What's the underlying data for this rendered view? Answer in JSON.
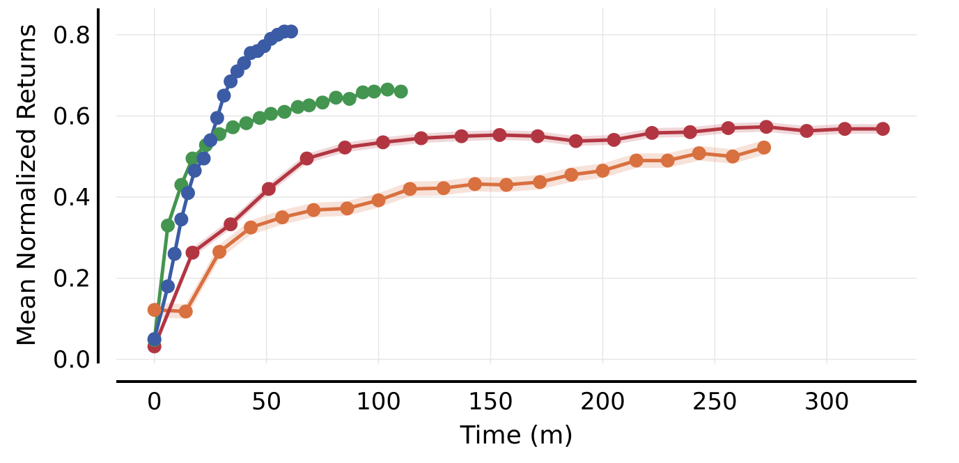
{
  "chart_data": {
    "type": "line",
    "title": "",
    "xlabel": "Time (m)",
    "ylabel": "Mean Normalized Returns",
    "xlim": [
      -17,
      340
    ],
    "ylim": [
      -0.01,
      0.865
    ],
    "x_ticks": [
      0,
      50,
      100,
      150,
      200,
      250,
      300
    ],
    "x_tick_labels": [
      "0",
      "50",
      "100",
      "150",
      "200",
      "250",
      "300"
    ],
    "y_ticks": [
      0.0,
      0.2,
      0.4,
      0.6,
      0.8
    ],
    "y_tick_labels": [
      "0.0",
      "0.2",
      "0.4",
      "0.6",
      "0.8"
    ],
    "grid": true,
    "legend": "none",
    "series": [
      {
        "name": "blue",
        "color": "#3b5ba5",
        "band_width": 0.005,
        "x": [
          0,
          6,
          9,
          12,
          15,
          18,
          22,
          25,
          28,
          31,
          34,
          37,
          40,
          43,
          46,
          49,
          52,
          55,
          58,
          61
        ],
        "y": [
          0.05,
          0.18,
          0.26,
          0.345,
          0.41,
          0.465,
          0.495,
          0.54,
          0.595,
          0.65,
          0.685,
          0.71,
          0.73,
          0.755,
          0.76,
          0.772,
          0.79,
          0.8,
          0.808,
          0.808
        ]
      },
      {
        "name": "green",
        "color": "#43954f",
        "band_width": 0.008,
        "x": [
          0,
          6,
          12,
          17,
          23,
          29,
          35,
          41,
          47,
          52,
          58,
          64,
          69,
          75,
          81,
          87,
          93,
          98,
          104,
          110
        ],
        "y": [
          0.048,
          0.33,
          0.43,
          0.495,
          0.528,
          0.555,
          0.572,
          0.582,
          0.595,
          0.605,
          0.61,
          0.622,
          0.626,
          0.633,
          0.645,
          0.642,
          0.658,
          0.66,
          0.665,
          0.66
        ]
      },
      {
        "name": "red",
        "color": "#b23642",
        "band_width": 0.012,
        "x": [
          0,
          17,
          34,
          51,
          68,
          85,
          102,
          119,
          137,
          154,
          171,
          188,
          205,
          222,
          239,
          256,
          273,
          291,
          308,
          325
        ],
        "y": [
          0.032,
          0.263,
          0.333,
          0.42,
          0.495,
          0.522,
          0.535,
          0.545,
          0.55,
          0.553,
          0.55,
          0.538,
          0.541,
          0.558,
          0.56,
          0.57,
          0.573,
          0.563,
          0.568,
          0.568
        ]
      },
      {
        "name": "orange",
        "color": "#d8703f",
        "band_width": 0.018,
        "x": [
          0,
          14,
          29,
          43,
          57,
          71,
          86,
          100,
          114,
          129,
          143,
          157,
          172,
          186,
          200,
          215,
          229,
          243,
          258,
          272
        ],
        "y": [
          0.122,
          0.118,
          0.265,
          0.325,
          0.35,
          0.368,
          0.372,
          0.392,
          0.42,
          0.422,
          0.432,
          0.43,
          0.437,
          0.455,
          0.465,
          0.49,
          0.49,
          0.508,
          0.5,
          0.522
        ]
      }
    ]
  }
}
